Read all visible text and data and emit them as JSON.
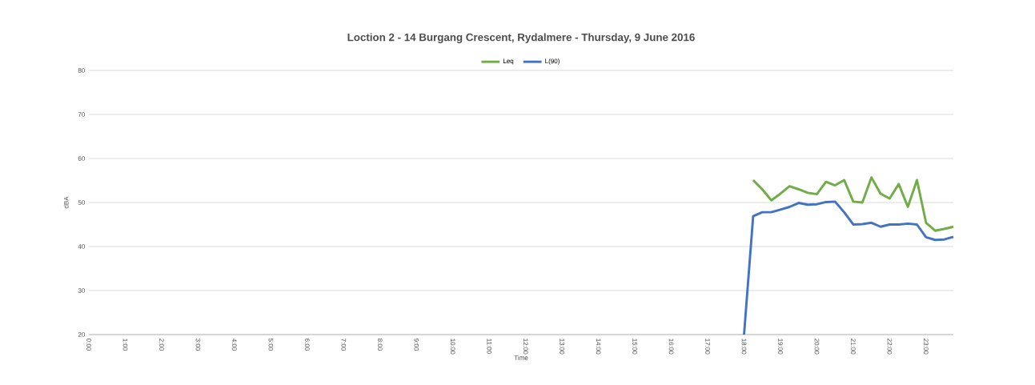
{
  "chart_data": {
    "type": "line",
    "title": "Loction 2 - 14 Burgang Crescent, Rydalmere - Thursday, 9 June 2016",
    "xlabel": "Time",
    "ylabel": "dBA",
    "x": [
      18.0,
      18.25,
      18.5,
      18.75,
      19.0,
      19.25,
      19.5,
      19.75,
      20.0,
      20.25,
      20.5,
      20.75,
      21.0,
      21.25,
      21.5,
      21.75,
      22.0,
      22.25,
      22.5,
      22.75,
      23.0,
      23.25,
      23.5,
      23.75
    ],
    "series": [
      {
        "name": "Leq",
        "color": "#70ad47",
        "values": [
          null,
          55.1,
          53,
          50.5,
          52,
          53.7,
          53,
          52.2,
          51.9,
          54.7,
          53.9,
          55.1,
          50.2,
          50,
          55.7,
          52,
          50.9,
          54.2,
          49,
          55.1,
          45.4,
          43.6,
          44,
          44.5
        ]
      },
      {
        "name": "L(90)",
        "color": "#4472c4",
        "values": [
          20,
          46.9,
          47.8,
          47.8,
          48.4,
          49,
          49.9,
          49.5,
          49.6,
          50.1,
          50.2,
          47.8,
          45,
          45.1,
          45.4,
          44.5,
          45,
          45,
          45.2,
          45,
          42.1,
          41.5,
          41.6,
          42.2
        ]
      }
    ],
    "xlim": [
      0,
      23.75
    ],
    "ylim": [
      20,
      80
    ],
    "xticks": [
      {
        "value": 0,
        "label": "0:00"
      },
      {
        "value": 1,
        "label": "1:00"
      },
      {
        "value": 2,
        "label": "2:00"
      },
      {
        "value": 3,
        "label": "3:00"
      },
      {
        "value": 4,
        "label": "4:00"
      },
      {
        "value": 5,
        "label": "5:00"
      },
      {
        "value": 6,
        "label": "6:00"
      },
      {
        "value": 7,
        "label": "7:00"
      },
      {
        "value": 8,
        "label": "8:00"
      },
      {
        "value": 9,
        "label": "9:00"
      },
      {
        "value": 10,
        "label": "10:00"
      },
      {
        "value": 11,
        "label": "11:00"
      },
      {
        "value": 12,
        "label": "12:00"
      },
      {
        "value": 13,
        "label": "13:00"
      },
      {
        "value": 14,
        "label": "14:00"
      },
      {
        "value": 15,
        "label": "15:00"
      },
      {
        "value": 16,
        "label": "16:00"
      },
      {
        "value": 17,
        "label": "17:00"
      },
      {
        "value": 18,
        "label": "18:00"
      },
      {
        "value": 19,
        "label": "19:00"
      },
      {
        "value": 20,
        "label": "20:00"
      },
      {
        "value": 21,
        "label": "21:00"
      },
      {
        "value": 22,
        "label": "22:00"
      },
      {
        "value": 23,
        "label": "23:00"
      }
    ],
    "yticks": [
      20,
      30,
      40,
      50,
      60,
      70,
      80
    ],
    "grid": "y",
    "legend": "top",
    "marker": "none",
    "line_style": "solid"
  }
}
